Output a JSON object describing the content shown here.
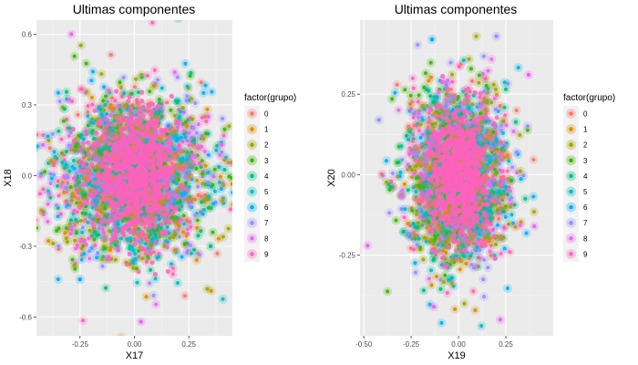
{
  "chart_data": [
    {
      "type": "scatter",
      "title": "Ultimas componentes",
      "xlabel": "X17",
      "ylabel": "X18",
      "xlim": [
        -0.45,
        0.45
      ],
      "ylim": [
        -0.68,
        0.66
      ],
      "xticks": [
        -0.25,
        0.0,
        0.25
      ],
      "xtick_labels": [
        "-0.25",
        "0.00",
        "0.25"
      ],
      "yticks": [
        -0.6,
        -0.3,
        0.0,
        0.3,
        0.6
      ],
      "ytick_labels": [
        "-0.6",
        "-0.3",
        "0.0",
        "0.3",
        "0.6"
      ],
      "grid": true,
      "legend_placement": "right",
      "legend_title": "factor(grupo)",
      "cloud_spread": [
        0.17,
        0.17
      ],
      "outliers": [
        {
          "x": -0.29,
          "y": 0.6,
          "g": 8
        },
        {
          "x": 0.03,
          "y": -0.62,
          "g": 8
        },
        {
          "x": -0.25,
          "y": -0.44,
          "g": 6
        },
        {
          "x": 0.4,
          "y": 0.13,
          "g": 8
        },
        {
          "x": 0.35,
          "y": -0.3,
          "g": 4
        },
        {
          "x": -0.42,
          "y": 0.13,
          "g": 8
        },
        {
          "x": 0.34,
          "y": 0.25,
          "g": 8
        }
      ]
    },
    {
      "type": "scatter",
      "title": "Ultimas componentes",
      "xlabel": "X19",
      "ylabel": "X20",
      "xlim": [
        -0.52,
        0.5
      ],
      "ylim": [
        -0.5,
        0.48
      ],
      "xticks": [
        -0.5,
        -0.25,
        0.0,
        0.25
      ],
      "xtick_labels": [
        "-0.50",
        "-0.25",
        "0.00",
        "0.25"
      ],
      "yticks": [
        -0.25,
        0.0,
        0.25
      ],
      "ytick_labels": [
        "-0.25",
        "0.00",
        "0.25"
      ],
      "grid": true,
      "legend_placement": "right",
      "legend_title": "factor(grupo)",
      "cloud_spread": [
        0.13,
        0.13
      ],
      "outliers": [
        {
          "x": -0.14,
          "y": 0.42,
          "g": 6
        },
        {
          "x": 0.2,
          "y": 0.43,
          "g": 7
        },
        {
          "x": -0.48,
          "y": -0.22,
          "g": 8
        },
        {
          "x": 0.22,
          "y": -0.45,
          "g": 8
        },
        {
          "x": -0.13,
          "y": -0.41,
          "g": 8
        },
        {
          "x": 0.4,
          "y": -0.16,
          "g": 8
        },
        {
          "x": 0.37,
          "y": 0.31,
          "g": 8
        },
        {
          "x": -0.42,
          "y": 0.17,
          "g": 7
        }
      ]
    }
  ],
  "legend": {
    "title": "factor(grupo)",
    "entries": [
      {
        "label": "0",
        "color": "#F8766D"
      },
      {
        "label": "1",
        "color": "#D89000"
      },
      {
        "label": "2",
        "color": "#A3A500"
      },
      {
        "label": "3",
        "color": "#39B600"
      },
      {
        "label": "4",
        "color": "#00BF7D"
      },
      {
        "label": "5",
        "color": "#00BFC4"
      },
      {
        "label": "6",
        "color": "#00B0F6"
      },
      {
        "label": "7",
        "color": "#9590FF"
      },
      {
        "label": "8",
        "color": "#E76BF3"
      },
      {
        "label": "9",
        "color": "#FF62BC"
      }
    ]
  },
  "style": {
    "panel_background": "#EBEBEB",
    "grid_major": "#FFFFFF"
  }
}
